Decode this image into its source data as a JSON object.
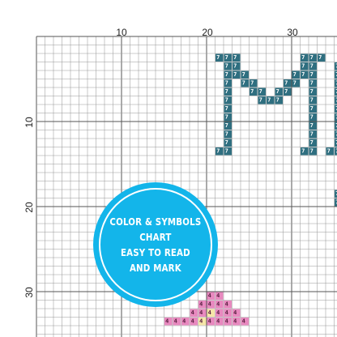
{
  "grid": {
    "col_labels": [
      "10",
      "20",
      "30"
    ],
    "row_labels": [
      "10",
      "20",
      "30"
    ]
  },
  "symbols": {
    "teal": "7",
    "pink": "4"
  },
  "colors": {
    "teal_fill": "#2f6f80",
    "teal_text": "#ffffff",
    "pink_fill": "#e889bf",
    "pink_text": "#5a2042",
    "light_fill": "#f6e6a8",
    "light_text": "#5a2042",
    "badge": "#13b5ea"
  },
  "badge": {
    "lines": [
      "COLOR & SYMBOLS",
      "CHART",
      "EASY TO READ",
      "AND MARK"
    ]
  }
}
